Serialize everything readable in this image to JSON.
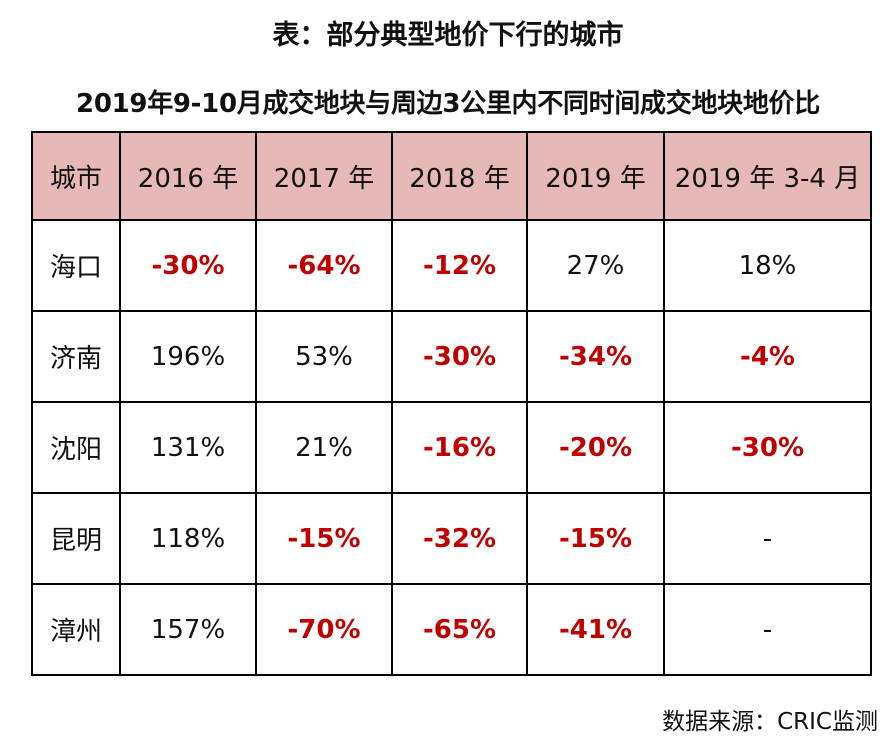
{
  "title": "表：部分典型地价下行的城市",
  "subtitle": "2019年9-10月成交地块与周边3公里内不同时间成交地块地价比",
  "table": {
    "headers": [
      "城市",
      "2016 年",
      "2017 年",
      "2018 年",
      "2019 年",
      "2019 年 3-4 月"
    ],
    "rows": [
      {
        "city": "海口",
        "cells": [
          {
            "text": "-30%",
            "negative": true
          },
          {
            "text": "-64%",
            "negative": true
          },
          {
            "text": "-12%",
            "negative": true
          },
          {
            "text": "27%",
            "negative": false
          },
          {
            "text": "18%",
            "negative": false
          }
        ]
      },
      {
        "city": "济南",
        "cells": [
          {
            "text": "196%",
            "negative": false
          },
          {
            "text": "53%",
            "negative": false
          },
          {
            "text": "-30%",
            "negative": true
          },
          {
            "text": "-34%",
            "negative": true
          },
          {
            "text": "-4%",
            "negative": true
          }
        ]
      },
      {
        "city": "沈阳",
        "cells": [
          {
            "text": "131%",
            "negative": false
          },
          {
            "text": "21%",
            "negative": false
          },
          {
            "text": "-16%",
            "negative": true
          },
          {
            "text": "-20%",
            "negative": true
          },
          {
            "text": "-30%",
            "negative": true
          }
        ]
      },
      {
        "city": "昆明",
        "cells": [
          {
            "text": "118%",
            "negative": false
          },
          {
            "text": "-15%",
            "negative": true
          },
          {
            "text": "-32%",
            "negative": true
          },
          {
            "text": "-15%",
            "negative": true
          },
          {
            "text": "-",
            "negative": false
          }
        ]
      },
      {
        "city": "漳州",
        "cells": [
          {
            "text": "157%",
            "negative": false
          },
          {
            "text": "-70%",
            "negative": true
          },
          {
            "text": "-65%",
            "negative": true
          },
          {
            "text": "-41%",
            "negative": true
          },
          {
            "text": "-",
            "negative": false
          }
        ]
      }
    ]
  },
  "source": "数据来源：CRIC监测",
  "colors": {
    "header_background": "#e6b8b8",
    "negative_text": "#c00000",
    "normal_text": "#111111",
    "border": "#000000"
  }
}
